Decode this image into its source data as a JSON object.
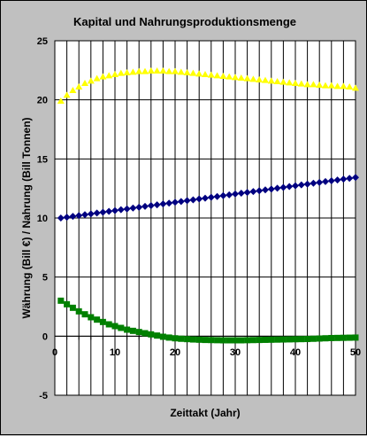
{
  "chart_data": {
    "type": "scatter",
    "title": "Kapital und Nahrungsproduktionsmenge",
    "xlabel": "Zeittakt (Jahr)",
    "ylabel": "Währung (Bill €) / Nahrung (Bill Tonnen)",
    "xlim": [
      0,
      50
    ],
    "ylim": [
      -5,
      25
    ],
    "x_ticks": [
      "0",
      "10",
      "20",
      "30",
      "40",
      "50"
    ],
    "y_ticks": [
      "-5",
      "0",
      "5",
      "10",
      "15",
      "20",
      "25"
    ],
    "grid": {
      "vertical": true,
      "horizontal_major": true
    },
    "legend": "none",
    "plot_background": "#ffffff",
    "figure_background": "#c0c0c0",
    "x": [
      1,
      2,
      3,
      4,
      5,
      6,
      7,
      8,
      9,
      10,
      11,
      12,
      13,
      14,
      15,
      16,
      17,
      18,
      19,
      20,
      21,
      22,
      23,
      24,
      25,
      26,
      27,
      28,
      29,
      30,
      31,
      32,
      33,
      34,
      35,
      36,
      37,
      38,
      39,
      40,
      41,
      42,
      43,
      44,
      45,
      46,
      47,
      48,
      49,
      50
    ],
    "series": [
      {
        "marker": "triangle",
        "color": "#ffff00",
        "values": [
          19.9,
          20.4,
          20.8,
          21.1,
          21.4,
          21.6,
          21.8,
          21.95,
          22.05,
          22.15,
          22.25,
          22.3,
          22.35,
          22.4,
          22.4,
          22.45,
          22.45,
          22.45,
          22.4,
          22.4,
          22.35,
          22.3,
          22.25,
          22.2,
          22.15,
          22.1,
          22.05,
          22.0,
          21.95,
          21.9,
          21.85,
          21.8,
          21.75,
          21.7,
          21.65,
          21.6,
          21.55,
          21.5,
          21.45,
          21.4,
          21.35,
          21.3,
          21.3,
          21.25,
          21.2,
          21.2,
          21.15,
          21.15,
          21.1,
          21.0
        ]
      },
      {
        "marker": "diamond",
        "color": "#000080",
        "values": [
          10.0,
          10.07,
          10.14,
          10.21,
          10.28,
          10.35,
          10.42,
          10.49,
          10.56,
          10.63,
          10.7,
          10.77,
          10.84,
          10.91,
          10.98,
          11.05,
          11.12,
          11.19,
          11.26,
          11.33,
          11.4,
          11.47,
          11.54,
          11.61,
          11.68,
          11.75,
          11.82,
          11.89,
          11.96,
          12.03,
          12.1,
          12.17,
          12.24,
          12.31,
          12.38,
          12.45,
          12.52,
          12.59,
          12.66,
          12.73,
          12.8,
          12.87,
          12.94,
          13.01,
          13.08,
          13.15,
          13.22,
          13.29,
          13.36,
          13.43
        ]
      },
      {
        "marker": "square",
        "color": "#008000",
        "values": [
          3.0,
          2.7,
          2.4,
          2.1,
          1.85,
          1.6,
          1.4,
          1.2,
          1.0,
          0.85,
          0.7,
          0.55,
          0.45,
          0.35,
          0.25,
          0.15,
          0.05,
          -0.05,
          -0.12,
          -0.18,
          -0.22,
          -0.25,
          -0.28,
          -0.3,
          -0.32,
          -0.33,
          -0.34,
          -0.35,
          -0.35,
          -0.35,
          -0.35,
          -0.34,
          -0.33,
          -0.32,
          -0.31,
          -0.3,
          -0.29,
          -0.28,
          -0.27,
          -0.26,
          -0.25,
          -0.24,
          -0.22,
          -0.2,
          -0.18,
          -0.16,
          -0.15,
          -0.14,
          -0.13,
          -0.12
        ]
      }
    ]
  }
}
